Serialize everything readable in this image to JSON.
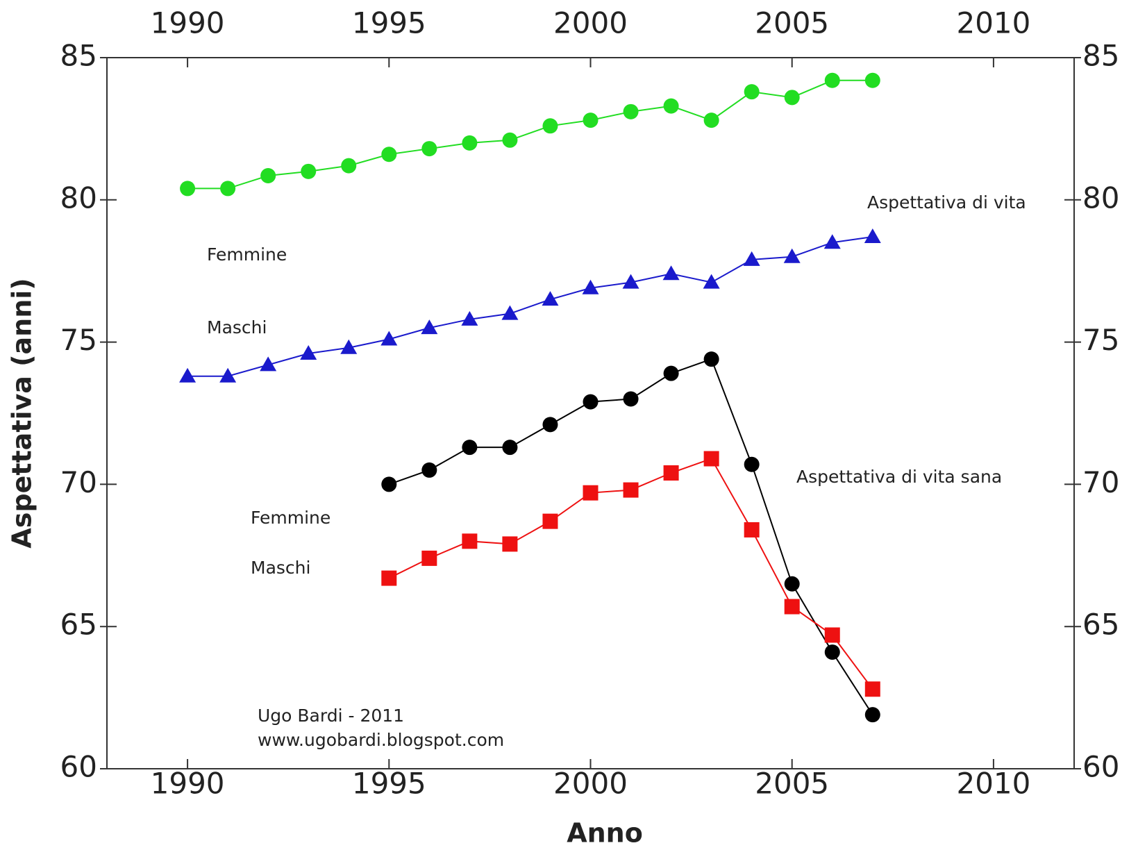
{
  "chart_data": {
    "type": "line",
    "x_label": "Anno",
    "y_label": "Aspettativa (anni)",
    "x": [
      1990,
      1991,
      1992,
      1993,
      1994,
      1995,
      1996,
      1997,
      1998,
      1999,
      2000,
      2001,
      2002,
      2003,
      2004,
      2005,
      2006,
      2007
    ],
    "series": [
      {
        "color": "#22dd22",
        "marker": "circle",
        "values": [
          80.4,
          80.4,
          80.85,
          81.0,
          81.2,
          81.6,
          81.8,
          82.0,
          82.1,
          82.6,
          82.8,
          83.1,
          83.3,
          82.8,
          83.8,
          83.6,
          84.2,
          84.2
        ]
      },
      {
        "color": "#1a1acc",
        "marker": "triangle",
        "values": [
          73.8,
          73.8,
          74.2,
          74.6,
          74.8,
          75.1,
          75.5,
          75.8,
          76.0,
          76.5,
          76.9,
          77.1,
          77.4,
          77.1,
          77.9,
          78.0,
          78.5,
          78.7
        ]
      },
      {
        "color": "#000000",
        "marker": "circle",
        "values": [
          null,
          null,
          null,
          null,
          null,
          70.0,
          70.5,
          71.3,
          71.3,
          72.1,
          72.9,
          73.0,
          73.9,
          74.4,
          70.7,
          66.5,
          64.1,
          61.9
        ]
      },
      {
        "color": "#ee1111",
        "marker": "square",
        "values": [
          null,
          null,
          null,
          null,
          null,
          66.7,
          67.4,
          68.0,
          67.9,
          68.7,
          69.7,
          69.8,
          70.4,
          70.9,
          68.4,
          65.7,
          64.7,
          62.8
        ]
      }
    ],
    "annotations": [
      "Aspettativa di vita",
      "Femmine",
      "Maschi",
      "Femmine",
      "Maschi",
      "Aspettativa di vita sana",
      "Ugo Bardi - 2011",
      "www.ugobardi.blogspot.com"
    ],
    "xlim": [
      1988,
      2012
    ],
    "xticks": [
      1990,
      1995,
      2000,
      2005,
      2010
    ],
    "ylim": [
      60,
      85
    ],
    "yticks": [
      60,
      65,
      70,
      75,
      80,
      85
    ]
  }
}
